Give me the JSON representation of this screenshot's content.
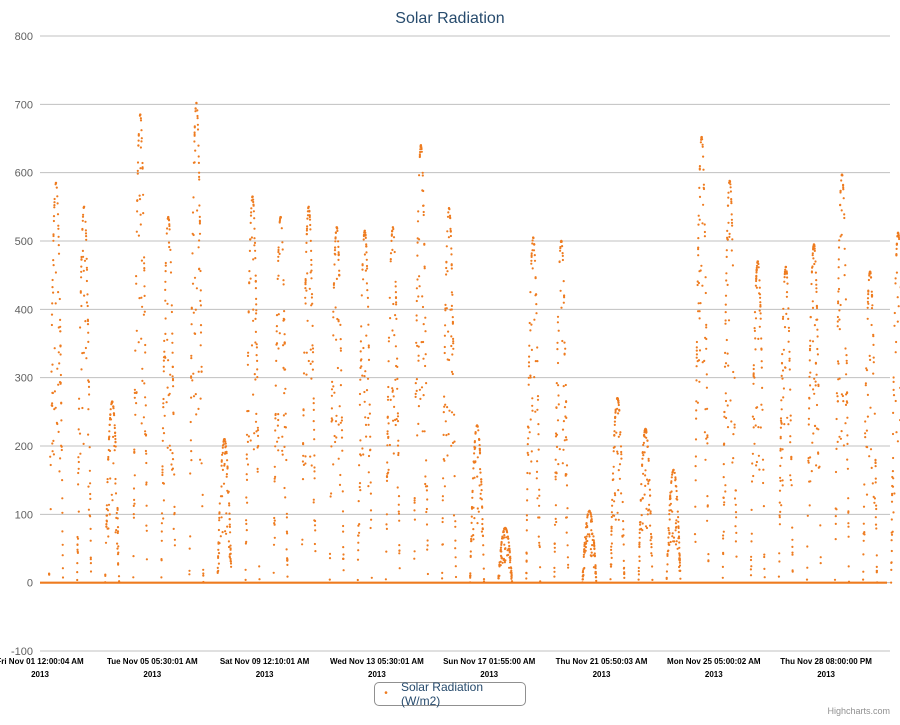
{
  "chart_data": {
    "type": "scatter",
    "title": "Solar Radiation",
    "ylim": [
      -100,
      800
    ],
    "yticks": [
      800,
      700,
      600,
      500,
      400,
      300,
      200,
      100,
      0,
      -100
    ],
    "grid": true,
    "legend_position": "bottom-center",
    "x_tick_labels": [
      {
        "line1": "Fri Nov 01 12:00:04 AM",
        "line2": "2013"
      },
      {
        "line1": "Tue Nov 05 05:30:01 AM",
        "line2": "2013"
      },
      {
        "line1": "Sat Nov 09 12:10:01 AM",
        "line2": "2013"
      },
      {
        "line1": "Wed Nov 13 05:30:01 AM",
        "line2": "2013"
      },
      {
        "line1": "Sun Nov 17 01:55:00 AM",
        "line2": "2013"
      },
      {
        "line1": "Thu Nov 21 05:50:03 AM",
        "line2": "2013"
      },
      {
        "line1": "Mon Nov 25 05:00:02 AM",
        "line2": "2013"
      },
      {
        "line1": "Thu Nov 28 08:00:00 PM",
        "line2": "2013"
      }
    ],
    "series": [
      {
        "name": "Solar Radiation (W/m2)",
        "color": "#ee7b1f",
        "daily_peaks": [
          {
            "date": "2013-11-01",
            "peak": 585
          },
          {
            "date": "2013-11-02",
            "peak": 550
          },
          {
            "date": "2013-11-03",
            "peak": 265
          },
          {
            "date": "2013-11-04",
            "peak": 685
          },
          {
            "date": "2013-11-05",
            "peak": 535
          },
          {
            "date": "2013-11-06",
            "peak": 702
          },
          {
            "date": "2013-11-07",
            "peak": 210
          },
          {
            "date": "2013-11-08",
            "peak": 565
          },
          {
            "date": "2013-11-09",
            "peak": 535
          },
          {
            "date": "2013-11-10",
            "peak": 550
          },
          {
            "date": "2013-11-11",
            "peak": 520
          },
          {
            "date": "2013-11-12",
            "peak": 515
          },
          {
            "date": "2013-11-13",
            "peak": 520
          },
          {
            "date": "2013-11-14",
            "peak": 640
          },
          {
            "date": "2013-11-15",
            "peak": 548
          },
          {
            "date": "2013-11-16",
            "peak": 230
          },
          {
            "date": "2013-11-17",
            "peak": 80
          },
          {
            "date": "2013-11-18",
            "peak": 505
          },
          {
            "date": "2013-11-19",
            "peak": 500
          },
          {
            "date": "2013-11-20",
            "peak": 105
          },
          {
            "date": "2013-11-21",
            "peak": 270
          },
          {
            "date": "2013-11-22",
            "peak": 225
          },
          {
            "date": "2013-11-23",
            "peak": 165
          },
          {
            "date": "2013-11-24",
            "peak": 652
          },
          {
            "date": "2013-11-25",
            "peak": 588
          },
          {
            "date": "2013-11-26",
            "peak": 470
          },
          {
            "date": "2013-11-27",
            "peak": 462
          },
          {
            "date": "2013-11-28",
            "peak": 495
          },
          {
            "date": "2013-11-29",
            "peak": 597
          },
          {
            "date": "2013-11-30",
            "peak": 455
          },
          {
            "date": "2013-12-01",
            "peak": 512
          }
        ]
      }
    ]
  },
  "legend": {
    "label": "Solar Radiation (W/m2)",
    "marker": "•"
  },
  "credits": "Highcharts.com"
}
